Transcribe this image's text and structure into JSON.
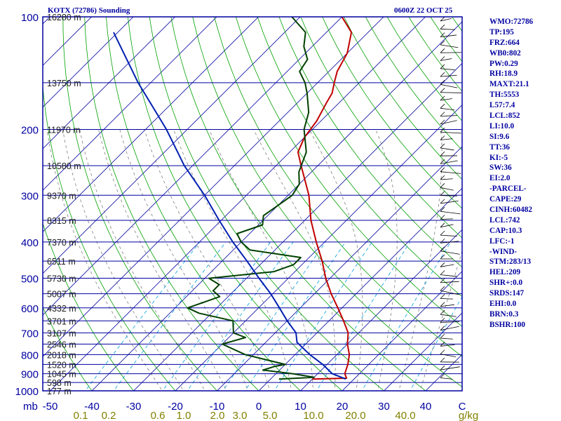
{
  "header": {
    "title": "KOTX (72786) Sounding",
    "time": "0600Z 22 OCT 25"
  },
  "colors": {
    "frame": "#0000a0",
    "isobar": "#0000a0",
    "isotherm": "#0000a0",
    "dry_adiabat": "#00a000",
    "moist_adiabat": "#808080",
    "mixing_ratio": "#00a0e0",
    "temperature": "#c00000",
    "dewpoint": "#004000",
    "parcel": "#0020b0",
    "mixing_ratio_labels": "#808000"
  },
  "indices": [
    "WMO:72786",
    "TP:195",
    "FRZ:664",
    "WB0:802",
    "PW:0.29",
    "RH:18.9",
    "MAXT:21.1",
    "TH:5553",
    "L57:7.4",
    "LCL:852",
    "LI:10.0",
    "SI:9.6",
    "TT:36",
    "KI:-5",
    "SW:36",
    "EI:2.0",
    "-PARCEL-",
    "CAPE:29",
    "CINH:60482",
    "LCL:742",
    "CAP:10.3",
    "LFC:-1",
    "-WIND-",
    "STM:283/13",
    "HEL:209",
    "SHR+:0.0",
    "SRDS:147",
    "EHI:0.0",
    "BRN:0.3",
    "BSHR:100"
  ],
  "chart_data": {
    "type": "line",
    "subtype": "skew-t log-p",
    "title": "KOTX (72786) Sounding",
    "xlabel": "",
    "ylabel": "mb",
    "xlim": [
      -50,
      50
    ],
    "ylim": [
      1000,
      100
    ],
    "log_y": true,
    "pressure_ticks": [
      100,
      200,
      300,
      400,
      500,
      600,
      700,
      800,
      900,
      1000
    ],
    "pressure_unit_label": "mb",
    "temperature_ticks": [
      "-50",
      "-40",
      "-30",
      "-20",
      "-10",
      "0",
      "10",
      "20",
      "30",
      "40",
      "C"
    ],
    "mixing_ratio_labels": [
      "0.1",
      "0.2",
      "0.6",
      "1.0",
      "2.0",
      "3.0",
      "5.0",
      "10.0",
      "20.0",
      "40.0",
      "g/kg"
    ],
    "mixing_ratio_values": [
      0.1,
      0.2,
      0.6,
      1.0,
      2.0,
      3.0,
      5.0,
      10.0,
      20.0,
      40.0
    ],
    "height_labels": [
      {
        "p": 100,
        "label": "16280 m"
      },
      {
        "p": 150,
        "label": "13750 m"
      },
      {
        "p": 200,
        "label": "11970 m"
      },
      {
        "p": 250,
        "label": "10580 m"
      },
      {
        "p": 300,
        "label": "9370 m"
      },
      {
        "p": 350,
        "label": "8315 m"
      },
      {
        "p": 400,
        "label": "7370 m"
      },
      {
        "p": 450,
        "label": "6511 m"
      },
      {
        "p": 500,
        "label": "5730 m"
      },
      {
        "p": 550,
        "label": "5007 m"
      },
      {
        "p": 600,
        "label": "4332 m"
      },
      {
        "p": 650,
        "label": "3701 m"
      },
      {
        "p": 700,
        "label": "3107 m"
      },
      {
        "p": 750,
        "label": "2546 m"
      },
      {
        "p": 800,
        "label": "2018 m"
      },
      {
        "p": 850,
        "label": "1520 m"
      },
      {
        "p": 900,
        "label": "1045 m"
      },
      {
        "p": 950,
        "label": "598 m"
      },
      {
        "p": 1000,
        "label": "177 m"
      }
    ],
    "series": [
      {
        "key": "temperature",
        "points": [
          [
            930,
            10.0
          ],
          [
            925,
            18.0
          ],
          [
            900,
            16.5
          ],
          [
            850,
            15.0
          ],
          [
            800,
            13.0
          ],
          [
            750,
            10.0
          ],
          [
            700,
            7.5
          ],
          [
            650,
            3.5
          ],
          [
            600,
            -1.0
          ],
          [
            550,
            -6.0
          ],
          [
            500,
            -11.0
          ],
          [
            450,
            -16.0
          ],
          [
            400,
            -22.0
          ],
          [
            350,
            -28.5
          ],
          [
            300,
            -35.0
          ],
          [
            250,
            -44.0
          ],
          [
            230,
            -48.0
          ],
          [
            210,
            -50.0
          ],
          [
            190,
            -51.0
          ],
          [
            170,
            -53.0
          ],
          [
            160,
            -54.0
          ],
          [
            150,
            -56.0
          ],
          [
            140,
            -58.0
          ],
          [
            125,
            -60.0
          ],
          [
            110,
            -64.0
          ],
          [
            100,
            -70.0
          ]
        ]
      },
      {
        "key": "dewpoint",
        "points": [
          [
            930,
            2.0
          ],
          [
            920,
            10.0
          ],
          [
            900,
            4.0
          ],
          [
            880,
            -4.0
          ],
          [
            860,
            -2.0
          ],
          [
            850,
            0.0
          ],
          [
            800,
            -12.0
          ],
          [
            750,
            -20.0
          ],
          [
            720,
            -16.0
          ],
          [
            700,
            -20.0
          ],
          [
            650,
            -23.0
          ],
          [
            620,
            -33.0
          ],
          [
            600,
            -37.0
          ],
          [
            560,
            -32.0
          ],
          [
            540,
            -35.0
          ],
          [
            520,
            -35.0
          ],
          [
            500,
            -39.0
          ],
          [
            480,
            -25.0
          ],
          [
            460,
            -22.0
          ],
          [
            440,
            -22.0
          ],
          [
            420,
            -36.0
          ],
          [
            400,
            -40.0
          ],
          [
            380,
            -43.0
          ],
          [
            360,
            -39.0
          ],
          [
            340,
            -41.0
          ],
          [
            320,
            -40.0
          ],
          [
            300,
            -39.0
          ],
          [
            280,
            -40.0
          ],
          [
            260,
            -43.0
          ],
          [
            230,
            -46.0
          ],
          [
            200,
            -52.0
          ],
          [
            180,
            -55.0
          ],
          [
            160,
            -60.0
          ],
          [
            150,
            -63.0
          ],
          [
            140,
            -67.0
          ],
          [
            130,
            -68.0
          ],
          [
            120,
            -72.0
          ],
          [
            110,
            -75.0
          ],
          [
            100,
            -82.0
          ]
        ]
      },
      {
        "key": "parcel",
        "points": [
          [
            930,
            18.0
          ],
          [
            900,
            13.5
          ],
          [
            850,
            9.0
          ],
          [
            800,
            3.5
          ],
          [
            742,
            -2.5
          ],
          [
            700,
            -5.0
          ],
          [
            650,
            -10.0
          ],
          [
            600,
            -15.0
          ],
          [
            550,
            -20.5
          ],
          [
            500,
            -27.0
          ],
          [
            450,
            -34.0
          ],
          [
            400,
            -42.0
          ],
          [
            350,
            -50.5
          ],
          [
            300,
            -60.0
          ],
          [
            250,
            -72.0
          ],
          [
            200,
            -85.0
          ],
          [
            150,
            -103.0
          ],
          [
            110,
            -121.0
          ]
        ]
      }
    ]
  }
}
